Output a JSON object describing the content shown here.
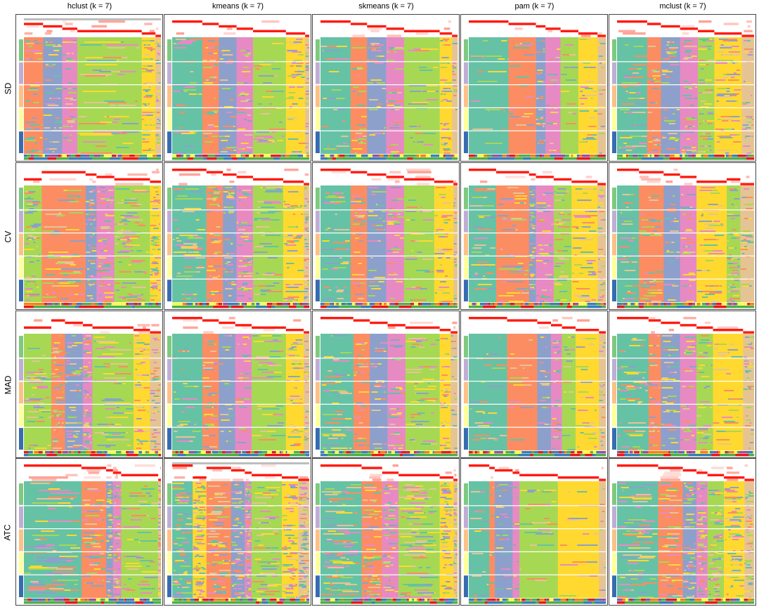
{
  "columns": [
    "hclust (k = 7)",
    "kmeans (k = 7)",
    "skmeans (k = 7)",
    "pam (k = 7)",
    "mclust (k = 7)"
  ],
  "rows": [
    "SD",
    "CV",
    "MAD",
    "ATC"
  ],
  "colors": {
    "classes": [
      "#66C2A5",
      "#FC8D62",
      "#8DA0CB",
      "#E78AC3",
      "#A6D854",
      "#FFD92F",
      "#E5C494"
    ],
    "row_annotation": [
      "#7FC97F",
      "#BEAED4",
      "#FDC086",
      "#FFFF99",
      "#386CB0"
    ],
    "bottom_annotation_1": [
      "#984EA3",
      "#377EB8",
      "#E41A1C",
      "#4DAF4A",
      "#FF7F00",
      "#FFFF33"
    ],
    "bottom_annotation_2": [
      "#4DAF4A",
      "#377EB8",
      "#E41A1C"
    ],
    "probability": "#FF0000",
    "silhouette_bar": "#BEBEBE"
  },
  "chart_data": {
    "type": "heatmap",
    "title": "",
    "k": 7,
    "panels": [
      {
        "row": "SD",
        "method": "hclust",
        "classes": [
          [
            1,
            0.14
          ],
          [
            2,
            0.14
          ],
          [
            3,
            0.11
          ],
          [
            4,
            0.47
          ],
          [
            5,
            0.1
          ],
          [
            6,
            0.04
          ]
        ],
        "noise": 0.35,
        "grey_bar": true
      },
      {
        "row": "SD",
        "method": "kmeans",
        "classes": [
          [
            0,
            0.22
          ],
          [
            1,
            0.12
          ],
          [
            2,
            0.13
          ],
          [
            3,
            0.12
          ],
          [
            4,
            0.24
          ],
          [
            5,
            0.14
          ],
          [
            6,
            0.03
          ]
        ],
        "noise": 0.3
      },
      {
        "row": "SD",
        "method": "skmeans",
        "classes": [
          [
            0,
            0.22
          ],
          [
            1,
            0.12
          ],
          [
            2,
            0.14
          ],
          [
            3,
            0.13
          ],
          [
            4,
            0.26
          ],
          [
            5,
            0.09
          ],
          [
            6,
            0.04
          ]
        ],
        "noise": 0.25
      },
      {
        "row": "SD",
        "method": "pam",
        "classes": [
          [
            0,
            0.29
          ],
          [
            1,
            0.2
          ],
          [
            2,
            0.07
          ],
          [
            3,
            0.11
          ],
          [
            4,
            0.13
          ],
          [
            5,
            0.14
          ],
          [
            6,
            0.06
          ]
        ],
        "noise": 0.2
      },
      {
        "row": "SD",
        "method": "mclust",
        "classes": [
          [
            0,
            0.22
          ],
          [
            1,
            0.1
          ],
          [
            2,
            0.14
          ],
          [
            3,
            0.13
          ],
          [
            4,
            0.12
          ],
          [
            5,
            0.2
          ],
          [
            6,
            0.09
          ]
        ],
        "noise": 0.35
      },
      {
        "row": "CV",
        "method": "hclust",
        "classes": [
          [
            4,
            0.13
          ],
          [
            1,
            0.32
          ],
          [
            2,
            0.08
          ],
          [
            3,
            0.13
          ],
          [
            4,
            0.26
          ],
          [
            5,
            0.08
          ]
        ],
        "noise": 0.45
      },
      {
        "row": "CV",
        "method": "kmeans",
        "classes": [
          [
            0,
            0.25
          ],
          [
            1,
            0.12
          ],
          [
            2,
            0.1
          ],
          [
            3,
            0.12
          ],
          [
            4,
            0.22
          ],
          [
            5,
            0.15
          ],
          [
            6,
            0.04
          ]
        ],
        "noise": 0.4
      },
      {
        "row": "CV",
        "method": "skmeans",
        "classes": [
          [
            0,
            0.22
          ],
          [
            1,
            0.12
          ],
          [
            2,
            0.14
          ],
          [
            3,
            0.13
          ],
          [
            4,
            0.22
          ],
          [
            5,
            0.14
          ],
          [
            6,
            0.03
          ]
        ],
        "noise": 0.3
      },
      {
        "row": "CV",
        "method": "pam",
        "classes": [
          [
            0,
            0.2
          ],
          [
            1,
            0.24
          ],
          [
            2,
            0.05
          ],
          [
            3,
            0.13
          ],
          [
            4,
            0.13
          ],
          [
            5,
            0.19
          ],
          [
            6,
            0.06
          ]
        ],
        "noise": 0.35
      },
      {
        "row": "CV",
        "method": "mclust",
        "classes": [
          [
            0,
            0.16
          ],
          [
            1,
            0.18
          ],
          [
            2,
            0.12
          ],
          [
            3,
            0.12
          ],
          [
            5,
            0.22
          ],
          [
            4,
            0.1
          ],
          [
            6,
            0.1
          ]
        ],
        "noise": 0.3
      },
      {
        "row": "MAD",
        "method": "hclust",
        "classes": [
          [
            4,
            0.2
          ],
          [
            1,
            0.1
          ],
          [
            2,
            0.13
          ],
          [
            3,
            0.07
          ],
          [
            4,
            0.3
          ],
          [
            5,
            0.12
          ],
          [
            6,
            0.08
          ]
        ],
        "noise": 0.4
      },
      {
        "row": "MAD",
        "method": "kmeans",
        "classes": [
          [
            0,
            0.22
          ],
          [
            1,
            0.12
          ],
          [
            2,
            0.12
          ],
          [
            3,
            0.12
          ],
          [
            4,
            0.25
          ],
          [
            5,
            0.13
          ],
          [
            6,
            0.04
          ]
        ],
        "noise": 0.3
      },
      {
        "row": "MAD",
        "method": "skmeans",
        "classes": [
          [
            0,
            0.24
          ],
          [
            1,
            0.12
          ],
          [
            2,
            0.13
          ],
          [
            3,
            0.13
          ],
          [
            4,
            0.25
          ],
          [
            5,
            0.08
          ],
          [
            6,
            0.05
          ]
        ],
        "noise": 0.25
      },
      {
        "row": "MAD",
        "method": "pam",
        "classes": [
          [
            0,
            0.28
          ],
          [
            1,
            0.22
          ],
          [
            2,
            0.1
          ],
          [
            3,
            0.08
          ],
          [
            4,
            0.1
          ],
          [
            5,
            0.17
          ],
          [
            6,
            0.05
          ]
        ],
        "noise": 0.2
      },
      {
        "row": "MAD",
        "method": "mclust",
        "classes": [
          [
            0,
            0.23
          ],
          [
            1,
            0.09
          ],
          [
            2,
            0.14
          ],
          [
            3,
            0.12
          ],
          [
            4,
            0.12
          ],
          [
            5,
            0.22
          ],
          [
            6,
            0.08
          ]
        ],
        "noise": 0.3
      },
      {
        "row": "ATC",
        "method": "hclust",
        "classes": [
          [
            0,
            0.42
          ],
          [
            1,
            0.18
          ],
          [
            2,
            0.05
          ],
          [
            3,
            0.06
          ],
          [
            4,
            0.27
          ],
          [
            6,
            0.02
          ]
        ],
        "noise": 0.5
      },
      {
        "row": "ATC",
        "method": "kmeans",
        "classes": [
          [
            0,
            0.15
          ],
          [
            5,
            0.1
          ],
          [
            1,
            0.18
          ],
          [
            2,
            0.1
          ],
          [
            3,
            0.05
          ],
          [
            4,
            0.22
          ],
          [
            5,
            0.12
          ],
          [
            6,
            0.08
          ]
        ],
        "noise": 0.6,
        "grey_bar": true
      },
      {
        "row": "ATC",
        "method": "skmeans",
        "classes": [
          [
            0,
            0.3
          ],
          [
            1,
            0.15
          ],
          [
            3,
            0.12
          ],
          [
            4,
            0.3
          ],
          [
            5,
            0.1
          ],
          [
            6,
            0.03
          ]
        ],
        "noise": 0.5
      },
      {
        "row": "ATC",
        "method": "pam",
        "classes": [
          [
            0,
            0.15
          ],
          [
            1,
            0.04
          ],
          [
            2,
            0.13
          ],
          [
            3,
            0.05
          ],
          [
            4,
            0.28
          ],
          [
            5,
            0.3
          ],
          [
            6,
            0.05
          ]
        ],
        "noise": 0.15
      },
      {
        "row": "ATC",
        "method": "mclust",
        "classes": [
          [
            0,
            0.3
          ],
          [
            1,
            0.18
          ],
          [
            2,
            0.1
          ],
          [
            3,
            0.08
          ],
          [
            4,
            0.12
          ],
          [
            5,
            0.15
          ],
          [
            6,
            0.07
          ]
        ],
        "noise": 0.5
      }
    ]
  }
}
